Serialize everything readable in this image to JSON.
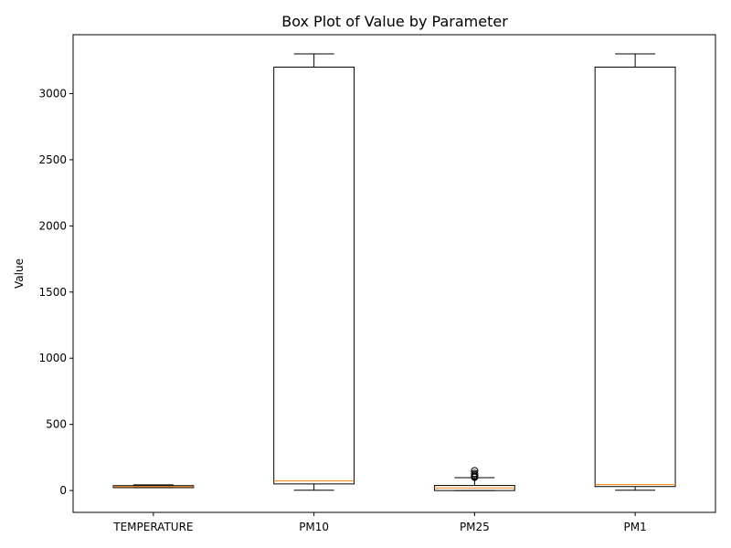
{
  "chart_data": {
    "type": "box",
    "title": "Box Plot of Value by Parameter",
    "xlabel": "",
    "ylabel": "Value",
    "ylim": [
      -165,
      3445
    ],
    "yticks": [
      0,
      500,
      1000,
      1500,
      2000,
      2500,
      3000
    ],
    "grid": false,
    "categories": [
      "TEMPERATURE",
      "PM10",
      "PM25",
      "PM1"
    ],
    "boxes": [
      {
        "category": "TEMPERATURE",
        "whisker_low": 22,
        "q1": 22,
        "median": 30,
        "q3": 37,
        "whisker_high": 43,
        "outliers": []
      },
      {
        "category": "PM10",
        "whisker_low": 2,
        "q1": 50,
        "median": 73,
        "q3": 3200,
        "whisker_high": 3300,
        "outliers": []
      },
      {
        "category": "PM25",
        "whisker_low": 0,
        "q1": 0,
        "median": 20,
        "q3": 38,
        "whisker_high": 97,
        "outliers": [
          100,
          105,
          110,
          120,
          130,
          150
        ]
      },
      {
        "category": "PM1",
        "whisker_low": 2,
        "q1": 30,
        "median": 45,
        "q3": 3200,
        "whisker_high": 3300,
        "outliers": []
      }
    ],
    "colors": {
      "box": "#000000",
      "median": "#ff7f0e"
    }
  }
}
